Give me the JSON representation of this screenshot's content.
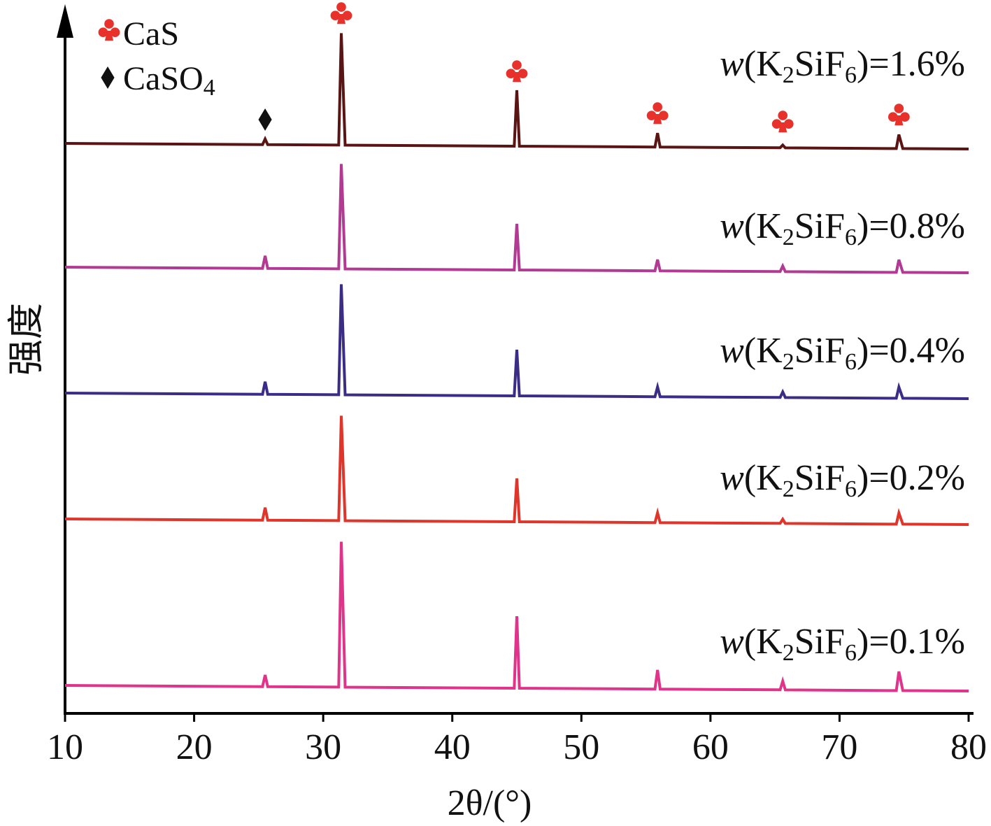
{
  "chart_data": {
    "type": "line",
    "xlabel": "2θ/(°)",
    "ylabel": "强度",
    "xlim": [
      10,
      80
    ],
    "xticks": [
      "10",
      "20",
      "30",
      "40",
      "50",
      "60",
      "70",
      "80"
    ],
    "legend": {
      "placement": "top-left",
      "entries": [
        {
          "marker": "club",
          "label": "CaS",
          "color": "#e8312a"
        },
        {
          "marker": "diamond",
          "label": "CaSO4",
          "color": "#111111"
        }
      ]
    },
    "peaks": {
      "CaS": [
        31.4,
        45.0,
        55.9,
        65.6,
        74.6
      ],
      "CaSO4": [
        25.5
      ]
    },
    "series": [
      {
        "name": "w(K2SiF6)=1.6%",
        "label_parts": {
          "w": "w",
          "open": "(K",
          "sub1": "2",
          "mid": "SiF",
          "sub2": "6",
          "close": ")=1.6%"
        },
        "color": "#5a1414",
        "baseline": 0.1,
        "points": [
          [
            10,
            0.1
          ],
          [
            25.3,
            0.1
          ],
          [
            25.5,
            0.5
          ],
          [
            25.7,
            0.1
          ],
          [
            31.2,
            0.1
          ],
          [
            31.4,
            8.1
          ],
          [
            31.7,
            0.1
          ],
          [
            44.8,
            0.1
          ],
          [
            45.0,
            4.1
          ],
          [
            45.2,
            0.1
          ],
          [
            55.7,
            0.1
          ],
          [
            55.9,
            1.1
          ],
          [
            56.1,
            0.1
          ],
          [
            65.4,
            0.1
          ],
          [
            65.6,
            0.3
          ],
          [
            65.8,
            0.1
          ],
          [
            74.4,
            0.1
          ],
          [
            74.6,
            1.1
          ],
          [
            74.9,
            0.1
          ],
          [
            80,
            0.1
          ]
        ]
      },
      {
        "name": "w(K2SiF6)=0.8%",
        "label_parts": {
          "w": "w",
          "open": "(K",
          "sub1": "2",
          "mid": "SiF",
          "sub2": "6",
          "close": ")=0.8%"
        },
        "color": "#b23a93",
        "baseline": 0.1,
        "points": [
          [
            10,
            0.1
          ],
          [
            25.3,
            0.1
          ],
          [
            25.5,
            1.0
          ],
          [
            25.7,
            0.1
          ],
          [
            31.2,
            0.1
          ],
          [
            31.4,
            7.6
          ],
          [
            31.7,
            0.1
          ],
          [
            44.8,
            0.1
          ],
          [
            45.0,
            3.4
          ],
          [
            45.2,
            0.1
          ],
          [
            55.7,
            0.1
          ],
          [
            55.9,
            0.9
          ],
          [
            56.1,
            0.1
          ],
          [
            65.4,
            0.1
          ],
          [
            65.6,
            0.5
          ],
          [
            65.8,
            0.1
          ],
          [
            74.4,
            0.1
          ],
          [
            74.6,
            1.0
          ],
          [
            74.9,
            0.1
          ],
          [
            80,
            0.1
          ]
        ]
      },
      {
        "name": "w(K2SiF6)=0.4%",
        "label_parts": {
          "w": "w",
          "open": "(K",
          "sub1": "2",
          "mid": "SiF",
          "sub2": "6",
          "close": ")=0.4%"
        },
        "color": "#3b2c86",
        "baseline": 0.1,
        "points": [
          [
            10,
            0.1
          ],
          [
            25.3,
            0.1
          ],
          [
            25.5,
            1.0
          ],
          [
            25.7,
            0.1
          ],
          [
            31.2,
            0.1
          ],
          [
            31.4,
            8.0
          ],
          [
            31.7,
            0.1
          ],
          [
            44.8,
            0.1
          ],
          [
            45.0,
            3.4
          ],
          [
            45.2,
            0.1
          ],
          [
            55.7,
            0.1
          ],
          [
            55.9,
            0.8
          ],
          [
            56.1,
            0.1
          ],
          [
            65.4,
            0.1
          ],
          [
            65.6,
            0.5
          ],
          [
            65.8,
            0.1
          ],
          [
            74.4,
            0.1
          ],
          [
            74.6,
            0.9
          ],
          [
            74.9,
            0.1
          ],
          [
            80,
            0.1
          ]
        ]
      },
      {
        "name": "w(K2SiF6)=0.2%",
        "label_parts": {
          "w": "w",
          "open": "(K",
          "sub1": "2",
          "mid": "SiF",
          "sub2": "6",
          "close": ")=0.2%"
        },
        "color": "#e0352b",
        "baseline": 0.1,
        "points": [
          [
            10,
            0.1
          ],
          [
            25.3,
            0.1
          ],
          [
            25.5,
            1.0
          ],
          [
            25.7,
            0.1
          ],
          [
            31.2,
            0.1
          ],
          [
            31.4,
            7.6
          ],
          [
            31.7,
            0.1
          ],
          [
            44.8,
            0.1
          ],
          [
            45.0,
            3.2
          ],
          [
            45.2,
            0.1
          ],
          [
            55.7,
            0.1
          ],
          [
            55.9,
            0.8
          ],
          [
            56.1,
            0.1
          ],
          [
            65.4,
            0.1
          ],
          [
            65.6,
            0.4
          ],
          [
            65.8,
            0.1
          ],
          [
            74.4,
            0.1
          ],
          [
            74.6,
            0.9
          ],
          [
            74.9,
            0.1
          ],
          [
            80,
            0.1
          ]
        ]
      },
      {
        "name": "w(K2SiF6)=0.1%",
        "label_parts": {
          "w": "w",
          "open": "(K",
          "sub1": "2",
          "mid": "SiF",
          "sub2": "6",
          "close": ")=0.1%"
        },
        "color": "#e0348a",
        "baseline": 0.1,
        "points": [
          [
            10,
            0.1
          ],
          [
            25.3,
            0.1
          ],
          [
            25.5,
            0.9
          ],
          [
            25.7,
            0.1
          ],
          [
            31.2,
            0.1
          ],
          [
            31.4,
            10.0
          ],
          [
            31.7,
            0.1
          ],
          [
            44.8,
            0.1
          ],
          [
            45.0,
            5.0
          ],
          [
            45.2,
            0.1
          ],
          [
            55.7,
            0.1
          ],
          [
            55.9,
            1.4
          ],
          [
            56.1,
            0.1
          ],
          [
            65.4,
            0.1
          ],
          [
            65.6,
            0.7
          ],
          [
            65.8,
            0.1
          ],
          [
            74.4,
            0.1
          ],
          [
            74.6,
            1.4
          ],
          [
            74.9,
            0.1
          ],
          [
            80,
            0.1
          ]
        ]
      }
    ]
  }
}
